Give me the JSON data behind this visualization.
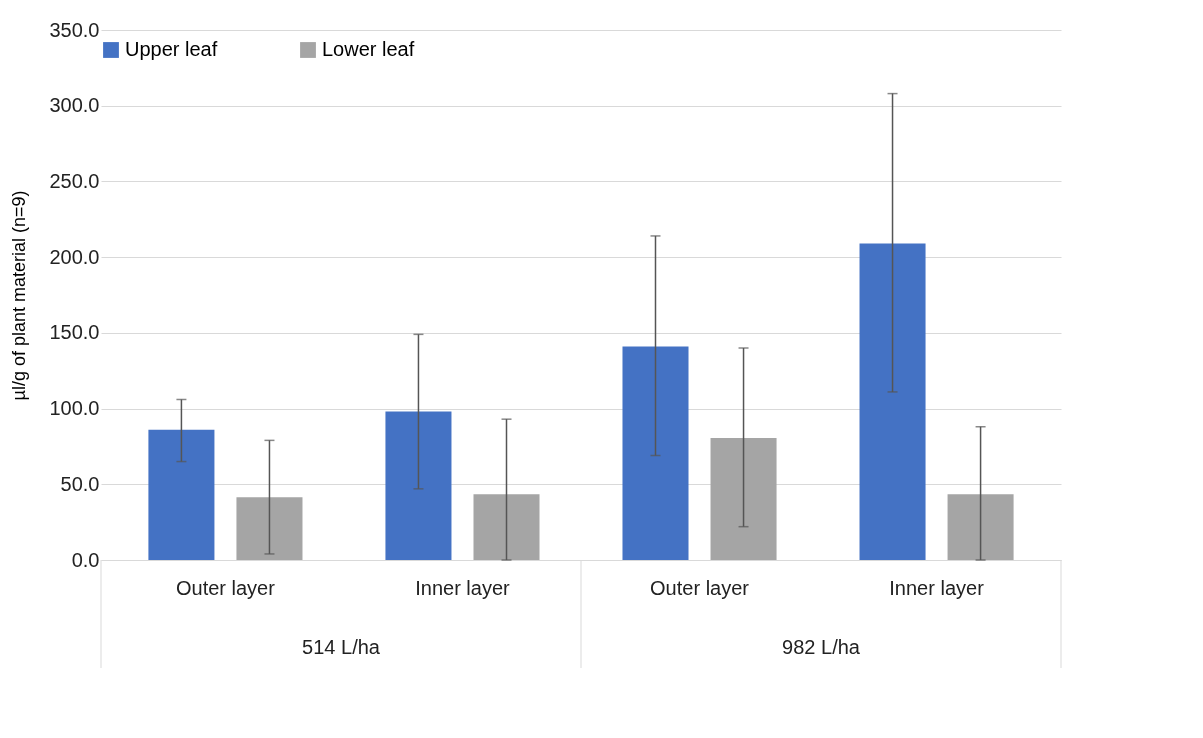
{
  "chart_data": {
    "type": "bar",
    "ylabel": "µl/g of plant material (n=9)",
    "categories": [
      "Outer layer",
      "Inner layer",
      "Outer layer",
      "Inner layer"
    ],
    "series": [
      {
        "name": "Upper leaf",
        "color": "#4472c4",
        "values": [
          86,
          98,
          141,
          209
        ],
        "errors": [
          [
            65,
            106
          ],
          [
            47,
            149
          ],
          [
            69,
            214
          ],
          [
            111,
            308
          ]
        ]
      },
      {
        "name": "Lower leaf",
        "color": "#a5a5a5",
        "values": [
          41.5,
          43.5,
          80.5,
          43.5
        ],
        "errors": [
          [
            4,
            79
          ],
          [
            0,
            93
          ],
          [
            22,
            140
          ],
          [
            0,
            88
          ]
        ]
      }
    ],
    "ylim": [
      0,
      350
    ],
    "yticks": [
      {
        "value": 0,
        "label": "0.0"
      },
      {
        "value": 50,
        "label": "50.0"
      },
      {
        "value": 100,
        "label": "100.0"
      },
      {
        "value": 150,
        "label": "150.0"
      },
      {
        "value": 200,
        "label": "200.0"
      },
      {
        "value": 250,
        "label": "250.0"
      },
      {
        "value": 300,
        "label": "300.0"
      },
      {
        "value": 350,
        "label": "350.0"
      }
    ],
    "grid": "y",
    "legend": "top",
    "annotations": [
      "514 L/ha",
      "982 L/ha"
    ]
  }
}
